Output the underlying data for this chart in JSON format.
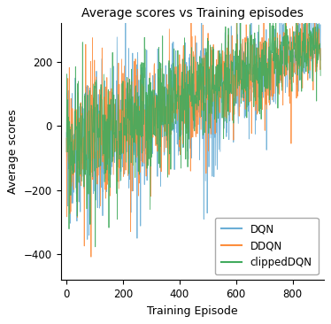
{
  "title": "Average scores vs Training episodes",
  "xlabel": "Training Episode",
  "ylabel": "Average scores",
  "xlim": [
    -20,
    910
  ],
  "ylim": [
    -480,
    320
  ],
  "yticks": [
    -400,
    -200,
    0,
    200
  ],
  "xticks": [
    0,
    200,
    400,
    600,
    800
  ],
  "n_episodes": 900,
  "dqn_color": "#6baed6",
  "ddqn_color": "#fd8d3c",
  "clipped_color": "#41ab5d",
  "legend_labels": [
    "DQN",
    "DDQN",
    "clippedDQN"
  ],
  "linewidth": 0.6,
  "alpha": 0.9,
  "figsize": [
    3.74,
    3.66
  ],
  "dpi": 100,
  "title_fontsize": 10,
  "label_fontsize": 9,
  "tick_fontsize": 8.5
}
